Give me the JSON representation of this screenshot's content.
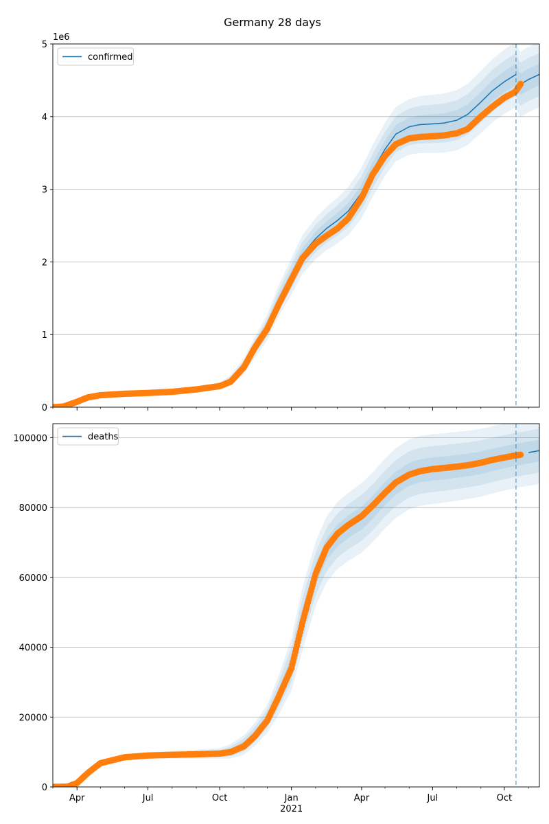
{
  "figure": {
    "title": "Germany 28 days",
    "colors": {
      "fit": "#1f77b4",
      "observed": "#ff7f0e",
      "grid": "#b0b0b0",
      "band": "#1f77b4",
      "forecast_line": "#1f77b4"
    }
  },
  "chart_data": [
    {
      "type": "line",
      "panel": "top",
      "x_axis": {
        "type": "date",
        "range": [
          "2020-03-01",
          "2021-11-15"
        ],
        "tick_dates": [
          "2020-04-01",
          "2020-07-01",
          "2020-10-01",
          "2021-01-01",
          "2021-04-01",
          "2021-07-01",
          "2021-10-01"
        ],
        "tick_labels": [
          "",
          "",
          "",
          "",
          "",
          "",
          ""
        ],
        "year_label": ""
      },
      "y_axis": {
        "range": [
          0,
          5000000
        ],
        "ticks": [
          0,
          1000000,
          2000000,
          3000000,
          4000000,
          5000000
        ],
        "tick_labels": [
          "0",
          "1",
          "2",
          "3",
          "4",
          "5"
        ],
        "offset_label": "1e6",
        "grid": true
      },
      "legend": {
        "entries": [
          "confirmed"
        ],
        "placement": "upper-left"
      },
      "forecast_start": "2021-10-16",
      "series": [
        {
          "name": "confirmed",
          "kind": "model-fit-line",
          "points": [
            [
              "2020-03-01",
              0
            ],
            [
              "2020-03-15",
              20000
            ],
            [
              "2020-04-01",
              90000
            ],
            [
              "2020-04-15",
              150000
            ],
            [
              "2020-05-01",
              175000
            ],
            [
              "2020-06-01",
              190000
            ],
            [
              "2020-07-01",
              205000
            ],
            [
              "2020-08-01",
              220000
            ],
            [
              "2020-09-01",
              255000
            ],
            [
              "2020-10-01",
              300000
            ],
            [
              "2020-10-15",
              370000
            ],
            [
              "2020-11-01",
              560000
            ],
            [
              "2020-11-15",
              820000
            ],
            [
              "2020-12-01",
              1100000
            ],
            [
              "2020-12-15",
              1450000
            ],
            [
              "2021-01-01",
              1800000
            ],
            [
              "2021-01-15",
              2100000
            ],
            [
              "2021-02-01",
              2320000
            ],
            [
              "2021-02-15",
              2460000
            ],
            [
              "2021-03-01",
              2570000
            ],
            [
              "2021-03-15",
              2700000
            ],
            [
              "2021-04-01",
              2950000
            ],
            [
              "2021-04-15",
              3250000
            ],
            [
              "2021-05-01",
              3550000
            ],
            [
              "2021-05-15",
              3760000
            ],
            [
              "2021-06-01",
              3860000
            ],
            [
              "2021-06-15",
              3890000
            ],
            [
              "2021-07-01",
              3900000
            ],
            [
              "2021-07-15",
              3910000
            ],
            [
              "2021-08-01",
              3950000
            ],
            [
              "2021-08-15",
              4030000
            ],
            [
              "2021-09-01",
              4200000
            ],
            [
              "2021-09-15",
              4350000
            ],
            [
              "2021-10-01",
              4480000
            ],
            [
              "2021-10-16",
              4580000
            ],
            [
              "2021-10-21",
              4440000
            ],
            [
              "2021-11-01",
              4510000
            ],
            [
              "2021-11-15",
              4580000
            ]
          ],
          "band_offsets_3sigma": [
            [
              "2020-03-01",
              0
            ],
            [
              "2020-10-01",
              40000
            ],
            [
              "2021-01-01",
              250000
            ],
            [
              "2021-04-01",
              350000
            ],
            [
              "2021-07-01",
              400000
            ],
            [
              "2021-10-16",
              450000
            ],
            [
              "2021-11-15",
              450000
            ]
          ]
        },
        {
          "name": "observed",
          "kind": "observed-points",
          "points": [
            [
              "2020-03-01",
              0
            ],
            [
              "2020-03-15",
              10000
            ],
            [
              "2020-04-01",
              75000
            ],
            [
              "2020-04-15",
              135000
            ],
            [
              "2020-05-01",
              165000
            ],
            [
              "2020-06-01",
              185000
            ],
            [
              "2020-07-01",
              196000
            ],
            [
              "2020-08-01",
              212000
            ],
            [
              "2020-09-01",
              245000
            ],
            [
              "2020-10-01",
              290000
            ],
            [
              "2020-10-15",
              350000
            ],
            [
              "2020-11-01",
              550000
            ],
            [
              "2020-11-15",
              820000
            ],
            [
              "2020-12-01",
              1080000
            ],
            [
              "2020-12-15",
              1400000
            ],
            [
              "2021-01-01",
              1760000
            ],
            [
              "2021-01-15",
              2050000
            ],
            [
              "2021-02-01",
              2250000
            ],
            [
              "2021-02-15",
              2360000
            ],
            [
              "2021-03-01",
              2460000
            ],
            [
              "2021-03-15",
              2600000
            ],
            [
              "2021-04-01",
              2880000
            ],
            [
              "2021-04-15",
              3200000
            ],
            [
              "2021-05-01",
              3460000
            ],
            [
              "2021-05-15",
              3620000
            ],
            [
              "2021-06-01",
              3700000
            ],
            [
              "2021-06-15",
              3720000
            ],
            [
              "2021-07-01",
              3730000
            ],
            [
              "2021-07-15",
              3740000
            ],
            [
              "2021-08-01",
              3770000
            ],
            [
              "2021-08-15",
              3830000
            ],
            [
              "2021-09-01",
              4000000
            ],
            [
              "2021-09-15",
              4130000
            ],
            [
              "2021-10-01",
              4260000
            ],
            [
              "2021-10-15",
              4340000
            ],
            [
              "2021-10-22",
              4450000
            ]
          ]
        }
      ]
    },
    {
      "type": "line",
      "panel": "bottom",
      "x_axis": {
        "type": "date",
        "range": [
          "2020-03-01",
          "2021-11-15"
        ],
        "tick_dates": [
          "2020-04-01",
          "2020-07-01",
          "2020-10-01",
          "2021-01-01",
          "2021-04-01",
          "2021-07-01",
          "2021-10-01"
        ],
        "tick_labels": [
          "Apr",
          "Jul",
          "Oct",
          "Jan",
          "Apr",
          "Jul",
          "Oct"
        ],
        "year_label": "2021"
      },
      "y_axis": {
        "range": [
          0,
          104000
        ],
        "ticks": [
          0,
          20000,
          40000,
          60000,
          80000,
          100000
        ],
        "tick_labels": [
          "0",
          "20000",
          "40000",
          "60000",
          "80000",
          "100000"
        ],
        "offset_label": "",
        "grid": true
      },
      "legend": {
        "entries": [
          "deaths"
        ],
        "placement": "upper-left"
      },
      "forecast_start": "2021-10-16",
      "series": [
        {
          "name": "deaths",
          "kind": "model-fit-line",
          "points": [
            [
              "2020-03-01",
              0
            ],
            [
              "2020-03-20",
              200
            ],
            [
              "2020-04-01",
              1500
            ],
            [
              "2020-04-15",
              4500
            ],
            [
              "2020-05-01",
              7000
            ],
            [
              "2020-06-01",
              8600
            ],
            [
              "2020-07-01",
              9000
            ],
            [
              "2020-08-01",
              9200
            ],
            [
              "2020-09-01",
              9400
            ],
            [
              "2020-10-01",
              9600
            ],
            [
              "2020-10-15",
              10200
            ],
            [
              "2020-11-01",
              12000
            ],
            [
              "2020-11-15",
              15000
            ],
            [
              "2020-12-01",
              19500
            ],
            [
              "2020-12-15",
              26000
            ],
            [
              "2021-01-01",
              35000
            ],
            [
              "2021-01-15",
              48000
            ],
            [
              "2021-02-01",
              61000
            ],
            [
              "2021-02-15",
              68000
            ],
            [
              "2021-03-01",
              72000
            ],
            [
              "2021-03-15",
              74500
            ],
            [
              "2021-04-01",
              77000
            ],
            [
              "2021-04-15",
              80000
            ],
            [
              "2021-05-01",
              84000
            ],
            [
              "2021-05-15",
              87000
            ],
            [
              "2021-06-01",
              89500
            ],
            [
              "2021-06-15",
              90500
            ],
            [
              "2021-07-01",
              91000
            ],
            [
              "2021-07-15",
              91300
            ],
            [
              "2021-08-01",
              91800
            ],
            [
              "2021-08-15",
              92200
            ],
            [
              "2021-09-01",
              92800
            ],
            [
              "2021-09-15",
              93600
            ],
            [
              "2021-10-01",
              94400
            ],
            [
              "2021-10-16",
              95100
            ],
            [
              "2021-11-01",
              95700
            ],
            [
              "2021-11-15",
              96300
            ]
          ],
          "band_offsets_3sigma": [
            [
              "2020-03-01",
              0
            ],
            [
              "2020-10-01",
              1500
            ],
            [
              "2020-12-01",
              4000
            ],
            [
              "2021-01-15",
              9000
            ],
            [
              "2021-04-01",
              10000
            ],
            [
              "2021-07-01",
              10000
            ],
            [
              "2021-10-16",
              9500
            ],
            [
              "2021-11-15",
              9500
            ]
          ]
        },
        {
          "name": "observed",
          "kind": "observed-points",
          "points": [
            [
              "2020-03-01",
              0
            ],
            [
              "2020-03-20",
              100
            ],
            [
              "2020-04-01",
              1100
            ],
            [
              "2020-04-15",
              4000
            ],
            [
              "2020-05-01",
              6800
            ],
            [
              "2020-06-01",
              8500
            ],
            [
              "2020-07-01",
              9000
            ],
            [
              "2020-08-01",
              9200
            ],
            [
              "2020-09-01",
              9350
            ],
            [
              "2020-10-01",
              9550
            ],
            [
              "2020-10-15",
              10000
            ],
            [
              "2020-11-01",
              11600
            ],
            [
              "2020-11-15",
              14500
            ],
            [
              "2020-12-01",
              19000
            ],
            [
              "2020-12-15",
              25500
            ],
            [
              "2021-01-01",
              34000
            ],
            [
              "2021-01-15",
              47000
            ],
            [
              "2021-02-01",
              61000
            ],
            [
              "2021-02-15",
              68500
            ],
            [
              "2021-03-01",
              72500
            ],
            [
              "2021-03-15",
              75000
            ],
            [
              "2021-04-01",
              77500
            ],
            [
              "2021-04-15",
              80500
            ],
            [
              "2021-05-01",
              84200
            ],
            [
              "2021-05-15",
              87200
            ],
            [
              "2021-06-01",
              89400
            ],
            [
              "2021-06-15",
              90400
            ],
            [
              "2021-07-01",
              91000
            ],
            [
              "2021-07-15",
              91300
            ],
            [
              "2021-08-01",
              91700
            ],
            [
              "2021-08-15",
              92100
            ],
            [
              "2021-09-01",
              92800
            ],
            [
              "2021-09-15",
              93600
            ],
            [
              "2021-10-01",
              94300
            ],
            [
              "2021-10-15",
              94900
            ],
            [
              "2021-10-22",
              95100
            ]
          ]
        }
      ]
    }
  ]
}
